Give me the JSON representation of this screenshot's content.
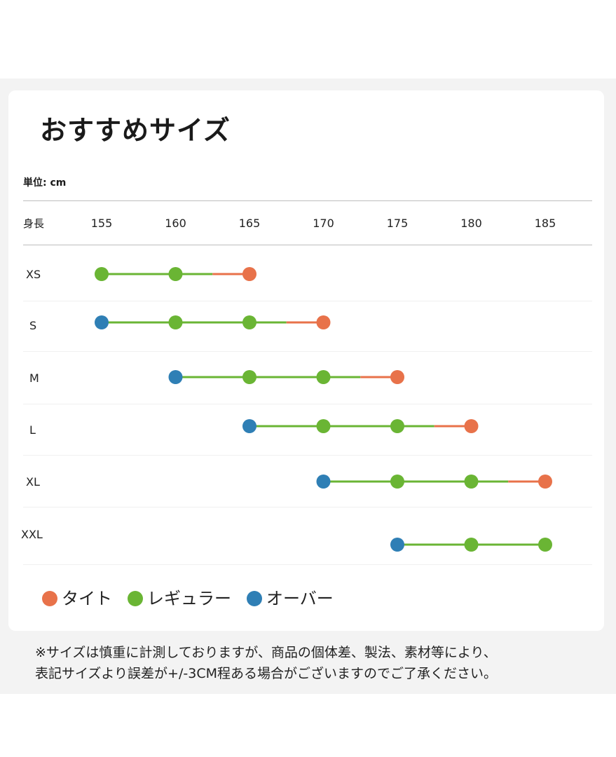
{
  "title": "おすすめサイズ",
  "unit_label": "単位: cm",
  "height_label": "身長",
  "chart_data": {
    "type": "range-dot",
    "ticks": [
      155,
      160,
      165,
      170,
      175,
      180,
      185
    ],
    "sizes": [
      {
        "label": "XS",
        "points": [
          {
            "x": 155,
            "fit": "regular"
          },
          {
            "x": 160,
            "fit": "regular"
          },
          {
            "x": 165,
            "fit": "tight"
          }
        ]
      },
      {
        "label": "S",
        "points": [
          {
            "x": 155,
            "fit": "over"
          },
          {
            "x": 160,
            "fit": "regular"
          },
          {
            "x": 165,
            "fit": "regular"
          },
          {
            "x": 170,
            "fit": "tight"
          }
        ]
      },
      {
        "label": "M",
        "points": [
          {
            "x": 160,
            "fit": "over"
          },
          {
            "x": 165,
            "fit": "regular"
          },
          {
            "x": 170,
            "fit": "regular"
          },
          {
            "x": 175,
            "fit": "tight"
          }
        ]
      },
      {
        "label": "L",
        "points": [
          {
            "x": 165,
            "fit": "over"
          },
          {
            "x": 170,
            "fit": "regular"
          },
          {
            "x": 175,
            "fit": "regular"
          },
          {
            "x": 180,
            "fit": "tight"
          }
        ]
      },
      {
        "label": "XL",
        "points": [
          {
            "x": 170,
            "fit": "over"
          },
          {
            "x": 175,
            "fit": "regular"
          },
          {
            "x": 180,
            "fit": "regular"
          },
          {
            "x": 185,
            "fit": "tight"
          }
        ]
      },
      {
        "label": "XXL",
        "points": [
          {
            "x": 175,
            "fit": "over"
          },
          {
            "x": 180,
            "fit": "regular"
          },
          {
            "x": 185,
            "fit": "regular"
          }
        ]
      }
    ],
    "legend": [
      {
        "key": "tight",
        "label": "タイト",
        "color": "#e8724a"
      },
      {
        "key": "regular",
        "label": "レギュラー",
        "color": "#6ab534"
      },
      {
        "key": "over",
        "label": "オーバー",
        "color": "#2f7fb5"
      }
    ],
    "line_color": "#6ab534",
    "tight_segment_color": "#e8724a"
  },
  "notes": [
    "※サイズは慎重に計測しておりますが、商品の個体差、製法、素材等により、",
    "表記サイズより誤差が+/-3CM程ある場合がございますのでご了承ください。"
  ]
}
